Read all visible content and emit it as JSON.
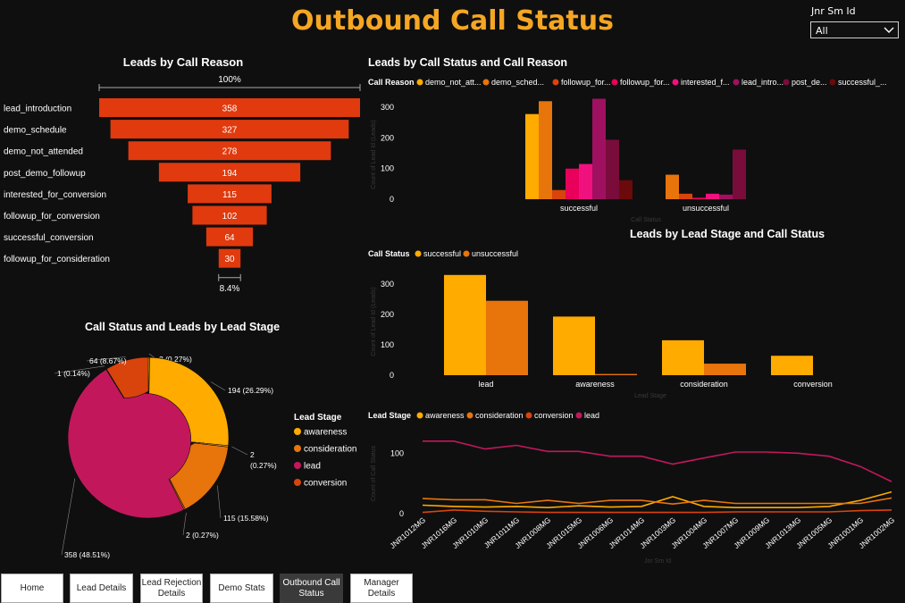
{
  "header": {
    "title": "Outbound Call Status"
  },
  "slicer": {
    "label": "Jnr Sm Id",
    "value": "All"
  },
  "tabs": [
    {
      "label": "Home"
    },
    {
      "label": "Lead Details"
    },
    {
      "label": "Lead Rejection Details"
    },
    {
      "label": "Demo Stats"
    },
    {
      "label": "Outbound Call Status"
    },
    {
      "label": "Manager Details"
    }
  ],
  "active_tab": 4,
  "colors": {
    "accent": "#f5a623",
    "funnel": "#e03a0e",
    "awareness": "#ffab00",
    "consideration": "#e8740c",
    "conversion": "#d9440c",
    "lead": "#c2185b",
    "text": "#ffffff"
  },
  "chart_data": [
    {
      "type": "bar",
      "subtype": "funnel",
      "title": "Leads by Call Reason",
      "categories": [
        "lead_introduction",
        "demo_schedule",
        "demo_not_attended",
        "post_demo_followup",
        "interested_for_conversion",
        "followup_for_conversion",
        "successful_conversion",
        "followup_for_consideration"
      ],
      "values": [
        358,
        327,
        278,
        194,
        115,
        102,
        64,
        30
      ],
      "top_label": "100%",
      "bottom_label": "8.4%"
    },
    {
      "type": "bar",
      "title": "Leads by Call Status and Call Reason",
      "legend_title": "Call Reason",
      "legend_labels": [
        "demo_not_att...",
        "demo_sched...",
        "followup_for...",
        "followup_for...",
        "interested_f...",
        "lead_intro...",
        "post_de...",
        "successful_..."
      ],
      "colors": [
        "#ffab00",
        "#e8740c",
        "#d9440c",
        "#e8005a",
        "#f0117f",
        "#a01060",
        "#7a0c3c",
        "#6a0a0a"
      ],
      "categories": [
        "successful",
        "unsuccessful"
      ],
      "series": [
        {
          "values": [
            278,
            0
          ]
        },
        {
          "values": [
            320,
            80
          ]
        },
        {
          "values": [
            30,
            18
          ]
        },
        {
          "values": [
            100,
            5
          ]
        },
        {
          "values": [
            115,
            18
          ]
        },
        {
          "values": [
            328,
            15
          ]
        },
        {
          "values": [
            194,
            162
          ]
        },
        {
          "values": [
            62,
            0
          ]
        }
      ],
      "yticks": [
        0,
        100,
        200,
        300
      ],
      "ylim": [
        0,
        350
      ],
      "xlabel": "Call Status",
      "ylabel": "Count of Lead Id (Leads)"
    },
    {
      "type": "bar",
      "title": "Leads by Lead Stage and Call Status",
      "legend_title": "Call Status",
      "categories": [
        "lead",
        "awareness",
        "consideration",
        "conversion"
      ],
      "series": [
        {
          "name": "successful",
          "color": "#ffab00",
          "values": [
            330,
            193,
            115,
            64
          ]
        },
        {
          "name": "unsuccessful",
          "color": "#e8740c",
          "values": [
            245,
            4,
            38,
            0
          ]
        }
      ],
      "yticks": [
        0,
        100,
        200,
        300
      ],
      "ylim": [
        0,
        350
      ],
      "xlabel": "Lead Stage",
      "ylabel": "Count of Lead Id (Leads)"
    },
    {
      "type": "pie",
      "title": "Call Status and Leads by Lead Stage",
      "legend_title": "Lead Stage",
      "legend": [
        {
          "name": "awareness",
          "color": "#ffab00"
        },
        {
          "name": "consideration",
          "color": "#e8740c"
        },
        {
          "name": "lead",
          "color": "#c2185b"
        },
        {
          "name": "conversion",
          "color": "#d9440c"
        }
      ],
      "slices": [
        {
          "label": "2 (0.27%)",
          "value": 2,
          "color": "#ffab00"
        },
        {
          "label": "194 (26.29%)",
          "value": 194,
          "color": "#ffab00"
        },
        {
          "label": "2 (0.27%)",
          "value": 2,
          "color": "#ffab00"
        },
        {
          "label": "115 (15.58%)",
          "value": 115,
          "color": "#e8740c"
        },
        {
          "label": "2 (0.27%)",
          "value": 2,
          "color": "#e8740c"
        },
        {
          "label": "358 (48.51%)",
          "value": 358,
          "color": "#c2185b"
        },
        {
          "label": "1 (0.14%)",
          "value": 1,
          "color": "#c2185b"
        },
        {
          "label": "64 (8.67%)",
          "value": 64,
          "color": "#d9440c"
        }
      ]
    },
    {
      "type": "line",
      "title": "",
      "legend_title": "Lead Stage",
      "categories": [
        "JNR1012MG",
        "JNR1016MG",
        "JNR1010MG",
        "JNR1011MG",
        "JNR1008MG",
        "JNR1015MG",
        "JNR1006MG",
        "JNR1014MG",
        "JNR1003MG",
        "JNR1004MG",
        "JNR1007MG",
        "JNR1009MG",
        "JNR1013MG",
        "JNR1005MG",
        "JNR1001MG",
        "JNR1002MG"
      ],
      "series": [
        {
          "name": "awareness",
          "color": "#ffab00",
          "values": [
            14,
            12,
            11,
            12,
            10,
            13,
            11,
            12,
            28,
            12,
            10,
            10,
            10,
            12,
            22,
            36
          ]
        },
        {
          "name": "consideration",
          "color": "#e8740c",
          "values": [
            25,
            23,
            23,
            17,
            22,
            17,
            22,
            22,
            16,
            22,
            17,
            17,
            17,
            17,
            17,
            26
          ]
        },
        {
          "name": "conversion",
          "color": "#d9440c",
          "values": [
            2,
            6,
            4,
            3,
            2,
            2,
            2,
            2,
            2,
            2,
            3,
            3,
            3,
            3,
            5,
            6
          ]
        },
        {
          "name": "lead",
          "color": "#c2185b",
          "values": [
            120,
            120,
            107,
            113,
            103,
            103,
            95,
            95,
            82,
            92,
            102,
            102,
            100,
            95,
            78,
            53
          ]
        }
      ],
      "yticks": [
        0,
        100
      ],
      "ylim": [
        -5,
        135
      ],
      "xlabel": "Jnr Sm Id",
      "ylabel": "Count of Call Status"
    }
  ]
}
